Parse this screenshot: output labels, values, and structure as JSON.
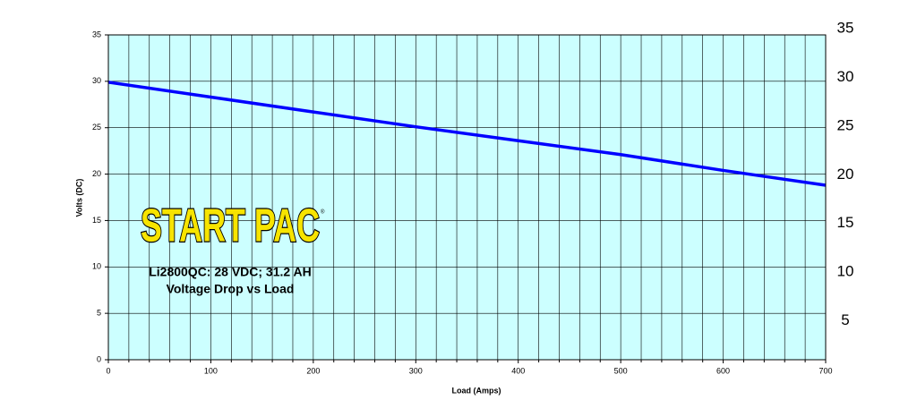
{
  "chart_data": {
    "type": "line",
    "logo": "START PAC",
    "logo_mark": "®",
    "title": "Li2800QC: 28 VDC; 31.2 AH",
    "subtitle": "Voltage Drop vs Load",
    "x_label": "Load (Amps)",
    "y_label": "Volts (DC)",
    "x": [
      0,
      100,
      200,
      300,
      400,
      500,
      600,
      700
    ],
    "series": [
      {
        "name": "Li2800QC",
        "color": "#0000ff",
        "values": [
          29.9,
          28.3,
          26.7,
          25.1,
          23.6,
          22.1,
          20.4,
          18.8
        ]
      }
    ],
    "xlim": [
      0,
      700
    ],
    "xticks": [
      0,
      100,
      200,
      300,
      400,
      500,
      600,
      700
    ],
    "x_minor_ticks": [
      20,
      40,
      60,
      80,
      120,
      140,
      160,
      180,
      220,
      240,
      260,
      280,
      320,
      340,
      360,
      380,
      420,
      440,
      460,
      480,
      520,
      540,
      560,
      580,
      620,
      640,
      660,
      680
    ],
    "ylim": [
      0,
      35
    ],
    "yticks": [
      0,
      5,
      10,
      15,
      20,
      25,
      30,
      35
    ],
    "y2lim": [
      0,
      35
    ],
    "y2ticks": [
      5,
      10,
      15,
      20,
      25,
      30,
      35
    ],
    "grid": true,
    "background": "#ccffff"
  }
}
